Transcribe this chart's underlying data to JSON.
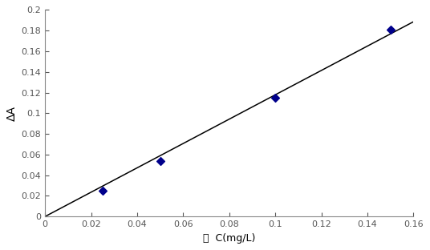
{
  "scatter_x": [
    0.025,
    0.05,
    0.1,
    0.15
  ],
  "scatter_y": [
    0.025,
    0.054,
    0.115,
    0.181
  ],
  "marker_color": "#00008B",
  "line_color": "#000000",
  "xlabel_chinese": "鑓",
  "xlabel_unit": "  C(mg/L)",
  "ylabel": "ΔA",
  "xlim": [
    0,
    0.16
  ],
  "ylim": [
    0,
    0.2
  ],
  "xticks": [
    0,
    0.02,
    0.04,
    0.06,
    0.08,
    0.1,
    0.12,
    0.14,
    0.16
  ],
  "yticks": [
    0,
    0.02,
    0.04,
    0.06,
    0.08,
    0.1,
    0.12,
    0.14,
    0.16,
    0.18,
    0.2
  ],
  "background_color": "#ffffff",
  "marker_size": 5,
  "line_width": 1.1,
  "axis_fontsize": 9,
  "tick_fontsize": 8
}
